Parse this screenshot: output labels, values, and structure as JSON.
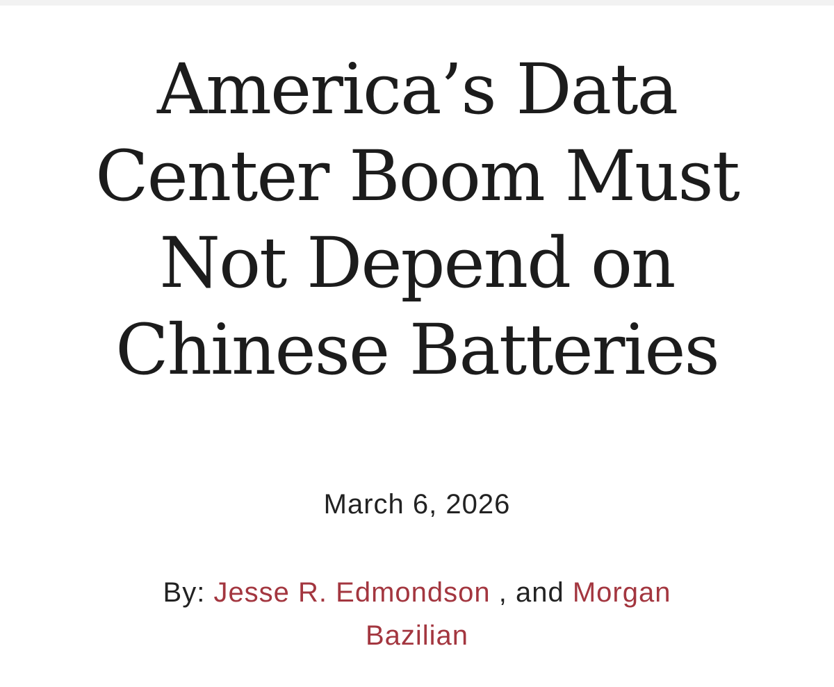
{
  "article": {
    "headline_lines": [
      "America’s Data",
      "Center Boom Must",
      "Not Depend on",
      "Chinese Batteries"
    ],
    "date": "March 6, 2026",
    "byline": {
      "prefix": "By:",
      "author1": "Jesse R. Edmondson",
      "separator": ", and",
      "author2_part1": "Morgan",
      "author2_part2": "Bazilian"
    }
  },
  "colors": {
    "text": "#1c1c1c",
    "author_link": "#a3363f",
    "top_strip": "#f2f2f2"
  }
}
